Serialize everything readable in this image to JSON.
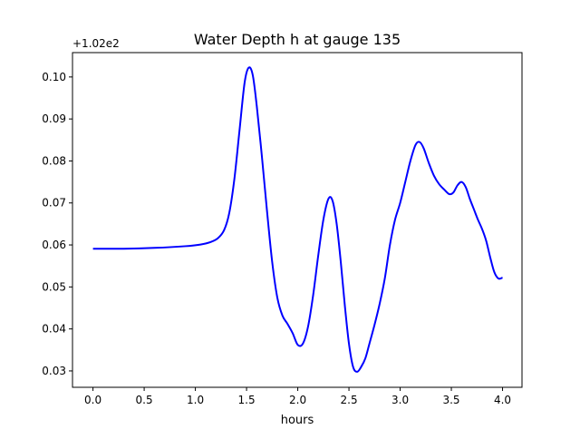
{
  "chart_data": {
    "type": "line",
    "title": "Water Depth h at gauge 135",
    "xlabel": "hours",
    "ylabel": "",
    "offset_text": "+1.02e2",
    "xlim": [
      -0.2,
      4.19
    ],
    "ylim": [
      0.0261,
      0.1058
    ],
    "xticks": [
      0.0,
      0.5,
      1.0,
      1.5,
      2.0,
      2.5,
      3.0,
      3.5,
      4.0
    ],
    "xtick_labels": [
      "0.0",
      "0.5",
      "1.0",
      "1.5",
      "2.0",
      "2.5",
      "3.0",
      "3.5",
      "4.0"
    ],
    "yticks": [
      0.03,
      0.04,
      0.05,
      0.06,
      0.07,
      0.08,
      0.09,
      0.1
    ],
    "ytick_labels": [
      "0.03",
      "0.04",
      "0.05",
      "0.06",
      "0.07",
      "0.08",
      "0.09",
      "0.10"
    ],
    "grid": false,
    "color": "#0000ff",
    "series": [
      {
        "name": "h",
        "x": [
          0.0,
          0.3,
          0.6,
          0.9,
          1.05,
          1.15,
          1.22,
          1.28,
          1.33,
          1.38,
          1.43,
          1.48,
          1.52,
          1.56,
          1.6,
          1.65,
          1.7,
          1.75,
          1.8,
          1.85,
          1.9,
          1.95,
          2.0,
          2.05,
          2.1,
          2.15,
          2.2,
          2.25,
          2.3,
          2.34,
          2.38,
          2.42,
          2.46,
          2.5,
          2.54,
          2.58,
          2.62,
          2.66,
          2.7,
          2.75,
          2.8,
          2.85,
          2.9,
          2.95,
          3.0,
          3.05,
          3.1,
          3.15,
          3.19,
          3.23,
          3.28,
          3.33,
          3.38,
          3.43,
          3.48,
          3.52,
          3.56,
          3.6,
          3.64,
          3.68,
          3.72,
          3.76,
          3.8,
          3.84,
          3.88,
          3.92,
          3.96,
          4.0
        ],
        "y": [
          0.0591,
          0.0591,
          0.0593,
          0.0597,
          0.0601,
          0.0607,
          0.0616,
          0.0635,
          0.0675,
          0.0755,
          0.087,
          0.0985,
          0.1022,
          0.1005,
          0.093,
          0.081,
          0.068,
          0.056,
          0.0475,
          0.0432,
          0.0412,
          0.039,
          0.0362,
          0.0365,
          0.0405,
          0.048,
          0.0575,
          0.066,
          0.071,
          0.0705,
          0.065,
          0.056,
          0.0455,
          0.0365,
          0.031,
          0.0298,
          0.031,
          0.033,
          0.0365,
          0.041,
          0.046,
          0.052,
          0.06,
          0.066,
          0.07,
          0.075,
          0.08,
          0.0838,
          0.0845,
          0.083,
          0.0795,
          0.0765,
          0.0745,
          0.0732,
          0.0721,
          0.0725,
          0.0742,
          0.075,
          0.0738,
          0.071,
          0.0685,
          0.066,
          0.0638,
          0.061,
          0.057,
          0.0535,
          0.052,
          0.0522
        ]
      }
    ]
  }
}
